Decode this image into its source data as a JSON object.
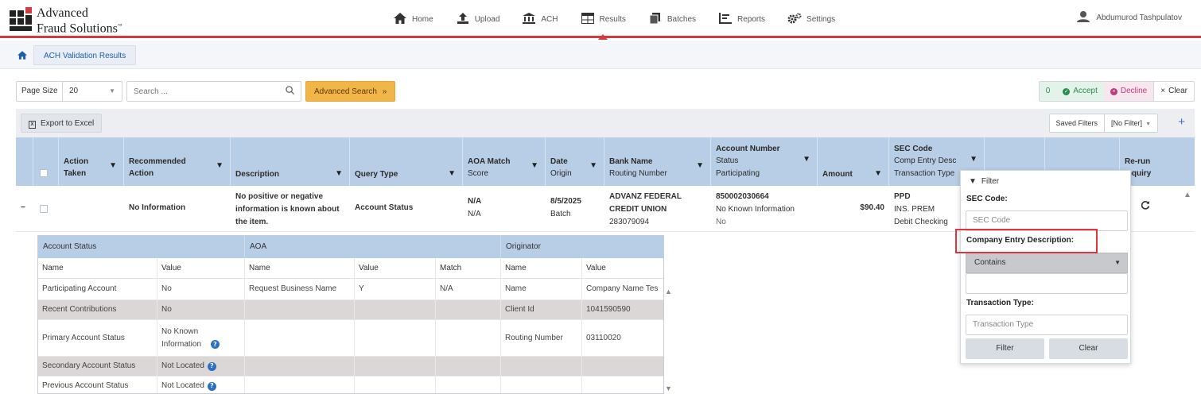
{
  "header": {
    "logo": {
      "line1": "Advanced",
      "line2": "Fraud Solutions",
      "tm": "™"
    },
    "nav": [
      {
        "label": "Home",
        "icon": "home-icon"
      },
      {
        "label": "Upload",
        "icon": "upload-icon"
      },
      {
        "label": "ACH",
        "icon": "bank-icon"
      },
      {
        "label": "Results",
        "icon": "table-icon",
        "active": true
      },
      {
        "label": "Batches",
        "icon": "batches-icon"
      },
      {
        "label": "Reports",
        "icon": "reports-icon"
      },
      {
        "label": "Settings",
        "icon": "gears-icon"
      }
    ],
    "user": "Abdumurod Tashpulatov"
  },
  "breadcrumb": {
    "tab": "ACH Validation Results"
  },
  "toolbar": {
    "page_size_label": "Page Size",
    "page_size_value": "20",
    "search_placeholder": "Search ...",
    "advanced_search": "Advanced Search",
    "count": "0",
    "accept": "Accept",
    "decline": "Decline",
    "clear": "Clear"
  },
  "export": {
    "label": "Export to Excel",
    "saved_filters": "Saved Filters",
    "no_filter": "[No Filter]"
  },
  "columns": {
    "action_taken": [
      "Action",
      "Taken"
    ],
    "recommended_action": [
      "Recommended",
      "Action"
    ],
    "description": "Description",
    "query_type": "Query Type",
    "aoa_match": [
      "AOA Match",
      "Score"
    ],
    "date": [
      "Date",
      "Origin"
    ],
    "bank": [
      "Bank Name",
      "Routing Number"
    ],
    "account": [
      "Account Number",
      "Status",
      "Participating"
    ],
    "amount": "Amount",
    "sec": [
      "SEC Code",
      "Comp Entry Desc",
      "Transaction Type"
    ],
    "rerun": [
      "Re-run",
      "Inquiry"
    ]
  },
  "row": {
    "expand": "−",
    "recommended": "No Information",
    "description": [
      "No positive or negative",
      "information is known about",
      "the item."
    ],
    "query_type": "Account Status",
    "aoa": [
      "N/A",
      "N/A"
    ],
    "date": [
      "8/5/2025",
      "Batch"
    ],
    "bank": [
      "ADVANZ FEDERAL",
      "CREDIT UNION",
      "283079094"
    ],
    "account": [
      "850002030664",
      "No Known Information",
      "No"
    ],
    "amount": "$90.40",
    "sec": [
      "PPD",
      "INS. PREM",
      "Debit Checking"
    ]
  },
  "details": {
    "groups": [
      "Account Status",
      "AOA",
      "Originator"
    ],
    "headers": [
      "Name",
      "Value",
      "Name",
      "Value",
      "Match",
      "Name",
      "Value"
    ],
    "rows": [
      [
        "Participating Account",
        "No",
        "Request Business Name",
        "Y",
        "N/A",
        "Name",
        "Company Name Tes"
      ],
      [
        "Recent Contributions",
        "No",
        "",
        "",
        "",
        "Client Id",
        "1041590590"
      ],
      [
        "Primary Account Status",
        "No Known Information",
        "",
        "",
        "",
        "Routing Number",
        "03110020"
      ],
      [
        "Secondary Account Status",
        "Not Located",
        "",
        "",
        "",
        "",
        ""
      ],
      [
        "Previous Account Status",
        "Not Located",
        "",
        "",
        "",
        "",
        ""
      ]
    ]
  },
  "filter_popup": {
    "title": "Filter",
    "sec_label": "SEC Code:",
    "sec_placeholder": "SEC Code",
    "ced_label": "Company Entry Description:",
    "ced_operator": "Contains",
    "tt_label": "Transaction Type:",
    "tt_placeholder": "Transaction Type",
    "filter_btn": "Filter",
    "clear_btn": "Clear"
  },
  "colors": {
    "brand_red": "#d43a3f",
    "header_blue": "#b8cde6",
    "advanced_search": "#f2b54a",
    "highlight": "#e1353d"
  }
}
